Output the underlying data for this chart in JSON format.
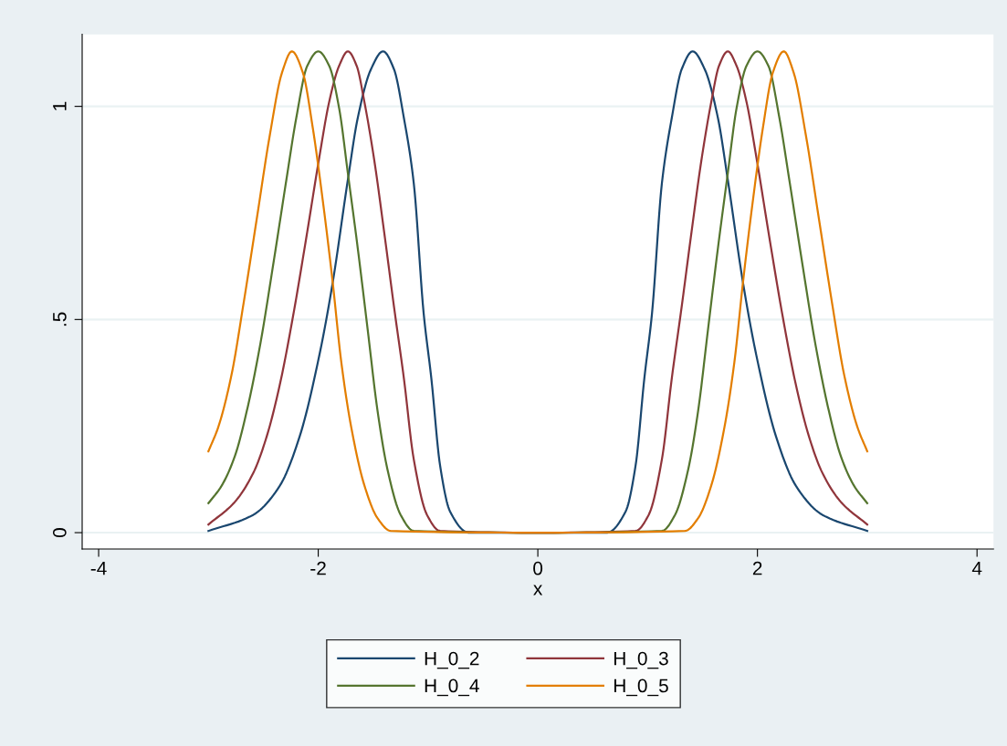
{
  "chart_data": {
    "type": "line",
    "xlabel": "x",
    "xlim": [
      -4.15,
      4.15
    ],
    "xticks": [
      {
        "value": -4,
        "label": "-4"
      },
      {
        "value": -2,
        "label": "-2"
      },
      0,
      2,
      4
    ],
    "ylim": [
      -0.0385,
      1.169
    ],
    "yticks": [
      0,
      {
        "value": 0.5,
        "label": ".5"
      },
      1
    ],
    "grid": "y",
    "legend": "bottom",
    "marker": "none",
    "line_style": "solid",
    "series": [
      {
        "name": "H_0_2",
        "color": "#1a476f",
        "x": [
          -3.0,
          -2.59,
          -2.35,
          -2.17,
          -1.99,
          -1.87,
          -1.73,
          -1.64,
          -1.52,
          -1.41,
          -1.31,
          -1.22,
          -1.13,
          -1.04,
          -0.97,
          -0.89,
          -0.8,
          -0.63,
          0,
          0.63,
          0.8,
          0.89,
          0.97,
          1.04,
          1.13,
          1.22,
          1.31,
          1.41,
          1.52,
          1.64,
          1.73,
          1.87,
          1.99,
          2.17,
          2.35,
          2.59,
          3.0
        ],
        "values": [
          0.004,
          0.042,
          0.11,
          0.225,
          0.416,
          0.584,
          0.828,
          0.973,
          1.087,
          1.129,
          1.087,
          0.973,
          0.82,
          0.515,
          0.362,
          0.157,
          0.05,
          0,
          0,
          0,
          0.05,
          0.157,
          0.362,
          0.515,
          0.82,
          0.973,
          1.087,
          1.129,
          1.087,
          0.973,
          0.828,
          0.584,
          0.416,
          0.225,
          0.11,
          0.042,
          0.004
        ]
      },
      {
        "name": "H_0_3",
        "color": "#90353b",
        "x": [
          -3.0,
          -2.76,
          -2.59,
          -2.47,
          -2.35,
          -2.23,
          -2.11,
          -1.99,
          -1.9,
          -1.81,
          -1.73,
          -1.65,
          -1.58,
          -1.49,
          -1.4,
          -1.31,
          -1.22,
          -1.13,
          -1.01,
          -0.89,
          0,
          0.89,
          1.01,
          1.13,
          1.22,
          1.31,
          1.4,
          1.49,
          1.58,
          1.65,
          1.73,
          1.81,
          1.9,
          1.99,
          2.11,
          2.23,
          2.35,
          2.47,
          2.59,
          2.76,
          3.0
        ],
        "values": [
          0.019,
          0.072,
          0.141,
          0.225,
          0.347,
          0.507,
          0.69,
          0.881,
          1.011,
          1.095,
          1.129,
          1.095,
          1.011,
          0.874,
          0.706,
          0.53,
          0.362,
          0.172,
          0.042,
          0.004,
          0,
          0.004,
          0.042,
          0.172,
          0.362,
          0.53,
          0.706,
          0.874,
          1.011,
          1.095,
          1.129,
          1.095,
          1.011,
          0.881,
          0.69,
          0.507,
          0.347,
          0.225,
          0.141,
          0.072,
          0.019
        ]
      },
      {
        "name": "H_0_4",
        "color": "#55752f",
        "x": [
          -3.0,
          -2.88,
          -2.76,
          -2.65,
          -2.53,
          -2.41,
          -2.29,
          -2.2,
          -2.1,
          -2.0,
          -1.9,
          -1.81,
          -1.73,
          -1.64,
          -1.55,
          -1.46,
          -1.37,
          -1.25,
          -1.13,
          0,
          1.13,
          1.25,
          1.37,
          1.46,
          1.55,
          1.64,
          1.73,
          1.81,
          1.9,
          2.0,
          2.1,
          2.2,
          2.29,
          2.41,
          2.53,
          2.65,
          2.76,
          2.88,
          3.0
        ],
        "values": [
          0.069,
          0.11,
          0.179,
          0.286,
          0.439,
          0.629,
          0.828,
          0.973,
          1.095,
          1.129,
          1.095,
          0.996,
          0.843,
          0.667,
          0.477,
          0.286,
          0.149,
          0.042,
          0.004,
          0,
          0.004,
          0.042,
          0.149,
          0.286,
          0.477,
          0.667,
          0.843,
          0.996,
          1.095,
          1.129,
          1.095,
          0.973,
          0.828,
          0.629,
          0.439,
          0.286,
          0.179,
          0.11,
          0.069
        ]
      },
      {
        "name": "H_0_5",
        "color": "#e37e00",
        "x": [
          -3.0,
          -2.91,
          -2.79,
          -2.68,
          -2.56,
          -2.44,
          -2.33,
          -2.24,
          -2.14,
          -2.05,
          -1.96,
          -1.87,
          -1.79,
          -1.7,
          -1.58,
          -1.46,
          -1.34,
          0,
          1.34,
          1.46,
          1.58,
          1.7,
          1.79,
          1.87,
          1.96,
          2.05,
          2.14,
          2.24,
          2.33,
          2.44,
          2.56,
          2.68,
          2.79,
          2.91,
          3.0
        ],
        "values": [
          0.191,
          0.248,
          0.37,
          0.538,
          0.736,
          0.934,
          1.079,
          1.129,
          1.079,
          0.95,
          0.782,
          0.591,
          0.4,
          0.248,
          0.111,
          0.034,
          0.004,
          0,
          0.004,
          0.034,
          0.111,
          0.248,
          0.4,
          0.591,
          0.782,
          0.95,
          1.079,
          1.129,
          1.079,
          0.934,
          0.736,
          0.538,
          0.37,
          0.248,
          0.191
        ]
      }
    ]
  }
}
